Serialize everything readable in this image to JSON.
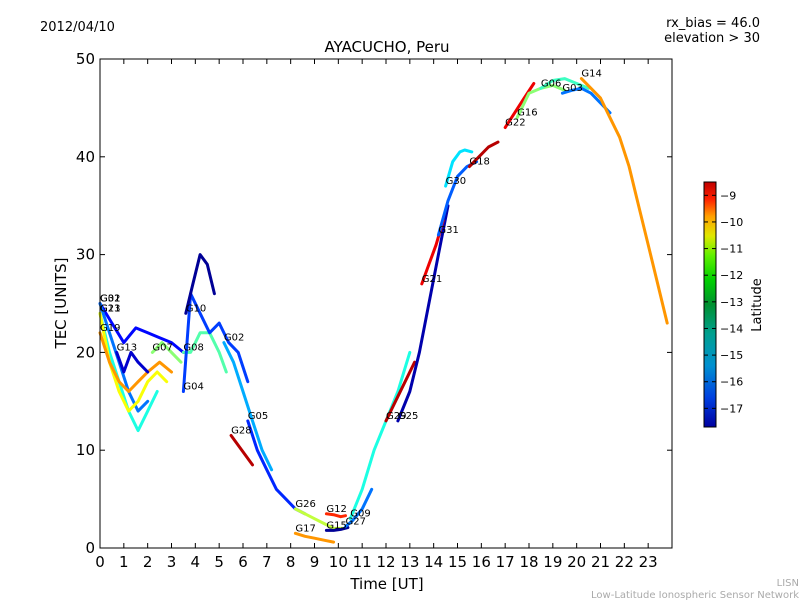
{
  "header": {
    "date": "2012/04/10",
    "rx_bias": "rx_bias = 46.0",
    "elevation": "elevation > 30"
  },
  "footer": {
    "org_short": "LISN",
    "org_long": "Low-Latitude Ionospheric Sensor Network"
  },
  "colorbar": {
    "label": "Latitude",
    "range": [
      -17.7,
      -8.5
    ],
    "ticks": [
      "−9",
      "−10",
      "−11",
      "−12",
      "−13",
      "−14",
      "−15",
      "−16",
      "−17"
    ],
    "tick_values": [
      -9,
      -10,
      -11,
      -12,
      -13,
      -14,
      -15,
      -16,
      -17
    ],
    "colormap": "jet"
  },
  "chart_data": {
    "type": "line",
    "title": "AYACUCHO, Peru",
    "xlabel": "Time [UT]",
    "ylabel": "TEC [UNITS]",
    "xlim": [
      0,
      24
    ],
    "ylim": [
      0,
      50
    ],
    "xticks": [
      "0",
      "1",
      "2",
      "3",
      "4",
      "5",
      "6",
      "7",
      "8",
      "9",
      "10",
      "11",
      "12",
      "13",
      "14",
      "15",
      "16",
      "17",
      "18",
      "19",
      "20",
      "21",
      "22",
      "23"
    ],
    "yticks": [
      "0",
      "10",
      "20",
      "30",
      "40",
      "50"
    ],
    "grid": false,
    "series": [
      {
        "name": "G01",
        "lat": -16.5,
        "x": [
          0,
          0.5,
          1,
          1.5,
          2,
          2.5,
          3,
          3.5
        ],
        "y": [
          25,
          23,
          21,
          22.5,
          22,
          21.5,
          21,
          20
        ]
      },
      {
        "name": "G32",
        "lat": -15.5,
        "x": [
          0,
          0.4,
          0.8,
          1.2,
          1.6,
          2.0
        ],
        "y": [
          25,
          22,
          19,
          16,
          14,
          15
        ]
      },
      {
        "name": "G23",
        "lat": -14,
        "x": [
          0,
          0.4,
          0.8,
          1.2,
          1.6,
          2,
          2.4
        ],
        "y": [
          24,
          20,
          17,
          14,
          12,
          14,
          16
        ]
      },
      {
        "name": "G11",
        "lat": -12,
        "x": [
          0,
          0.4,
          0.8,
          1.2,
          1.6,
          2,
          2.4,
          2.8
        ],
        "y": [
          24,
          19,
          16,
          14,
          15,
          17,
          18,
          17
        ]
      },
      {
        "name": "G19",
        "lat": -11,
        "x": [
          0,
          0.4,
          0.8,
          1.2,
          1.6,
          2.0,
          2.5,
          3.0
        ],
        "y": [
          22,
          19,
          17,
          16,
          17,
          18,
          19,
          18
        ]
      },
      {
        "name": "G13",
        "lat": -17,
        "x": [
          0.7,
          1.0,
          1.3,
          1.6,
          2.0
        ],
        "y": [
          20,
          18,
          20,
          19,
          18
        ]
      },
      {
        "name": "G07",
        "lat": -13,
        "x": [
          2.2,
          2.6,
          3.0,
          3.4
        ],
        "y": [
          20,
          21,
          20,
          19
        ]
      },
      {
        "name": "G08",
        "lat": -13.5,
        "x": [
          3.5,
          3.8,
          4.2,
          4.6,
          5.0,
          5.3
        ],
        "y": [
          20,
          20,
          22,
          22,
          20,
          18
        ]
      },
      {
        "name": "G04",
        "lat": -16,
        "x": [
          3.5,
          3.8,
          4.2,
          4.6,
          5.0,
          5.4,
          5.8,
          6.2
        ],
        "y": [
          16,
          26,
          24,
          22,
          23,
          21,
          20,
          17
        ]
      },
      {
        "name": "G10",
        "lat": -17.5,
        "x": [
          3.6,
          3.9,
          4.2,
          4.5,
          4.8
        ],
        "y": [
          24,
          27,
          30,
          29,
          26
        ]
      },
      {
        "name": "G02",
        "lat": -15,
        "x": [
          5.2,
          5.6,
          6.0,
          6.4,
          6.8,
          7.2
        ],
        "y": [
          21,
          19,
          16,
          13,
          10,
          8
        ]
      },
      {
        "name": "G05",
        "lat": -16.2,
        "x": [
          6.2,
          6.6,
          7.0,
          7.4,
          7.8,
          8.2,
          8.6
        ],
        "y": [
          13,
          10,
          8,
          6,
          5,
          4,
          3.5
        ]
      },
      {
        "name": "G28",
        "lat": -9,
        "x": [
          5.5,
          5.8,
          6.1,
          6.4
        ],
        "y": [
          11.5,
          10.5,
          9.5,
          8.5
        ]
      },
      {
        "name": "G26",
        "lat": -12.5,
        "x": [
          8.2,
          8.6,
          9.0,
          9.4,
          9.8,
          10.2
        ],
        "y": [
          4,
          3.5,
          3,
          2.5,
          2,
          2
        ]
      },
      {
        "name": "G17",
        "lat": -11,
        "x": [
          8.2,
          8.6,
          9.0,
          9.4,
          9.8
        ],
        "y": [
          1.5,
          1.2,
          1.0,
          0.8,
          0.6
        ]
      },
      {
        "name": "G12",
        "lat": -10,
        "x": [
          9.5,
          9.8,
          10.1,
          10.3
        ],
        "y": [
          3.5,
          3.4,
          3.2,
          3.3
        ]
      },
      {
        "name": "G15",
        "lat": -17.5,
        "x": [
          9.5,
          9.8,
          10.1,
          10.4
        ],
        "y": [
          1.8,
          1.8,
          1.9,
          2.1
        ]
      },
      {
        "name": "G27",
        "lat": -15.5,
        "x": [
          10.3,
          10.6,
          11.0,
          11.4
        ],
        "y": [
          2.2,
          2.8,
          4,
          6
        ]
      },
      {
        "name": "G09",
        "lat": -14,
        "x": [
          10.5,
          11,
          11.5,
          12,
          12.5,
          13
        ],
        "y": [
          3,
          6,
          10,
          13,
          16,
          20
        ]
      },
      {
        "name": "G29",
        "lat": -9,
        "x": [
          12.0,
          12.4,
          12.8,
          13.2
        ],
        "y": [
          13,
          15,
          17,
          19
        ]
      },
      {
        "name": "G25",
        "lat": -17.3,
        "x": [
          12.5,
          13,
          13.4,
          13.8,
          14.2,
          14.6
        ],
        "y": [
          13,
          16,
          20,
          25,
          30,
          35
        ]
      },
      {
        "name": "G21",
        "lat": -9.5,
        "x": [
          13.5,
          13.8,
          14.1,
          14.4
        ],
        "y": [
          27,
          29,
          31,
          33.5
        ]
      },
      {
        "name": "G31",
        "lat": -15.7,
        "x": [
          14.2,
          14.6,
          15.0,
          15.4,
          15.8
        ],
        "y": [
          32,
          35.5,
          38,
          39,
          39.5
        ]
      },
      {
        "name": "G18",
        "lat": -9,
        "x": [
          15.5,
          15.9,
          16.3,
          16.7
        ],
        "y": [
          39,
          40,
          41,
          41.5
        ]
      },
      {
        "name": "G30",
        "lat": -14.5,
        "x": [
          14.5,
          14.8,
          15.1,
          15.3,
          15.6
        ],
        "y": [
          37,
          39.5,
          40.5,
          40.7,
          40.5
        ]
      },
      {
        "name": "G22",
        "lat": -9.5,
        "x": [
          17,
          17.4,
          17.8,
          18.2
        ],
        "y": [
          43,
          44.5,
          46,
          47.5
        ]
      },
      {
        "name": "G16",
        "lat": -13,
        "x": [
          17.5,
          18,
          18.5,
          19,
          19.5
        ],
        "y": [
          44,
          46.5,
          47,
          47.3,
          46.8
        ]
      },
      {
        "name": "G06",
        "lat": -13.7,
        "x": [
          18.5,
          19.0,
          19.5,
          20.0,
          20.5
        ],
        "y": [
          47,
          47.8,
          48,
          47.5,
          47
        ]
      },
      {
        "name": "G03",
        "lat": -15.5,
        "x": [
          19.4,
          19.8,
          20.2,
          20.6,
          21.0,
          21.4
        ],
        "y": [
          46.5,
          46.8,
          47,
          46.5,
          45.5,
          44.5
        ]
      },
      {
        "name": "G14",
        "lat": -11,
        "x": [
          20.2,
          20.6,
          21.0,
          21.4,
          21.8,
          22.2,
          22.6,
          23.0,
          23.4,
          23.8
        ],
        "y": [
          48,
          47,
          46,
          44,
          42,
          39,
          35,
          31,
          27,
          23
        ]
      }
    ]
  }
}
